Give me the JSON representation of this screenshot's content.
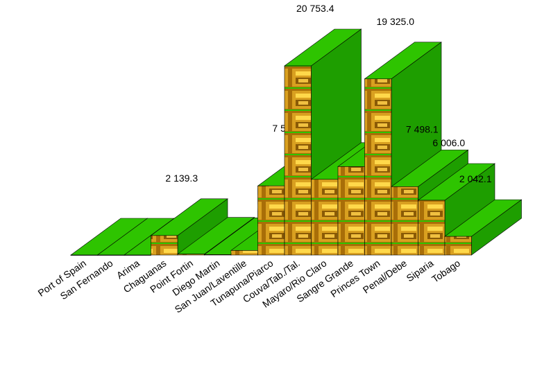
{
  "chart_data": {
    "type": "bar3d",
    "categories": [
      "Port of Spain",
      "San Fernando",
      "Arima",
      "Chaguanas",
      "Point Fortin",
      "Diego Martin",
      "San Juan/Laventille",
      "Tunapuna/Piarco",
      "Couva/Tab./Tal.",
      "Mayaro/Rio Claro",
      "Sangre Grande",
      "Princes Town",
      "Penal/Debe",
      "Siparia",
      "Tobago"
    ],
    "values": [
      0,
      0,
      0,
      2139.3,
      100,
      50,
      500,
      7585.9,
      20753.4,
      8300,
      9700,
      19325.0,
      7498.1,
      6006.0,
      2042.1
    ],
    "value_labels": [
      null,
      null,
      null,
      "2 139.3",
      null,
      null,
      null,
      "7 585.9",
      "20 753.4",
      null,
      null,
      "19 325.0",
      "7 498.1",
      "6 006.0",
      "2 042.1"
    ],
    "color": "#c8900c",
    "side_color": "#1e9e00",
    "top_color": "#2ec400"
  }
}
